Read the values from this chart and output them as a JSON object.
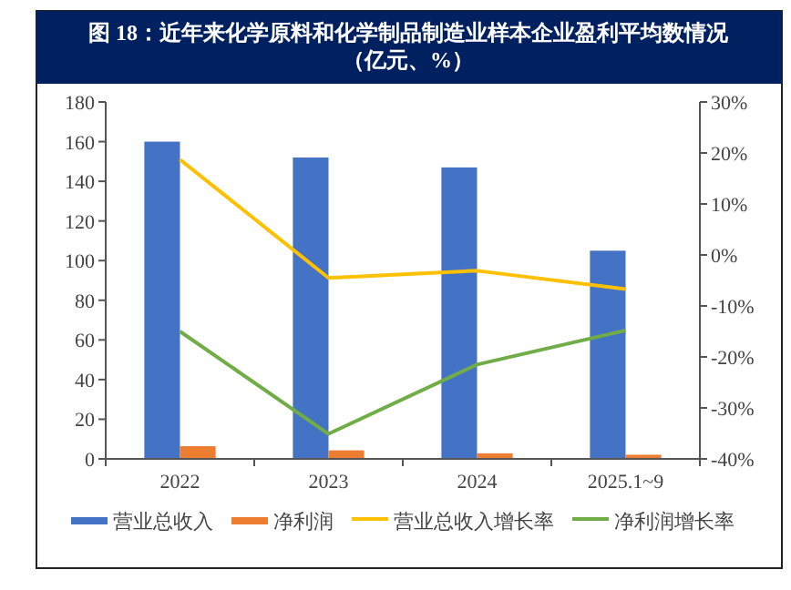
{
  "chart_data": {
    "type": "bar",
    "title": "图 18：近年来化学原料和化学制品制造业样本企业盈利平均数情况（亿元、%）",
    "categories": [
      "2022",
      "2023",
      "2024",
      "2025.1~9"
    ],
    "series": [
      {
        "name": "营业总收入",
        "color": "#4472c4",
        "values": [
          160,
          152,
          147,
          105
        ]
      },
      {
        "name": "净利润",
        "color": "#ed7d31",
        "values": [
          6.4,
          4.3,
          2.8,
          2.1
        ]
      },
      {
        "name": "营业总收入增长率",
        "type": "line",
        "axis": "y2",
        "color": "#ffc000",
        "values": [
          18.7,
          -4.5,
          -3.1,
          -6.7
        ]
      },
      {
        "name": "净利润增长率",
        "type": "line",
        "axis": "y2",
        "color": "#70ad47",
        "values": [
          -15,
          -35.1,
          -21.5,
          -14.8
        ]
      }
    ],
    "ylim": [
      0,
      180
    ],
    "yticks": [
      0,
      20,
      40,
      60,
      80,
      100,
      120,
      140,
      160,
      180
    ],
    "y2lim": [
      -40,
      30
    ],
    "y2ticks": [
      {
        "value": -40,
        "label": "-40%"
      },
      {
        "value": -30,
        "label": "-30%"
      },
      {
        "value": -20,
        "label": "-20%"
      },
      {
        "value": -10,
        "label": "-10%"
      },
      {
        "value": 0,
        "label": "0%"
      },
      {
        "value": 10,
        "label": "10%"
      },
      {
        "value": 20,
        "label": "20%"
      },
      {
        "value": 30,
        "label": "30%"
      }
    ],
    "legend": "bottom",
    "grid": false
  }
}
